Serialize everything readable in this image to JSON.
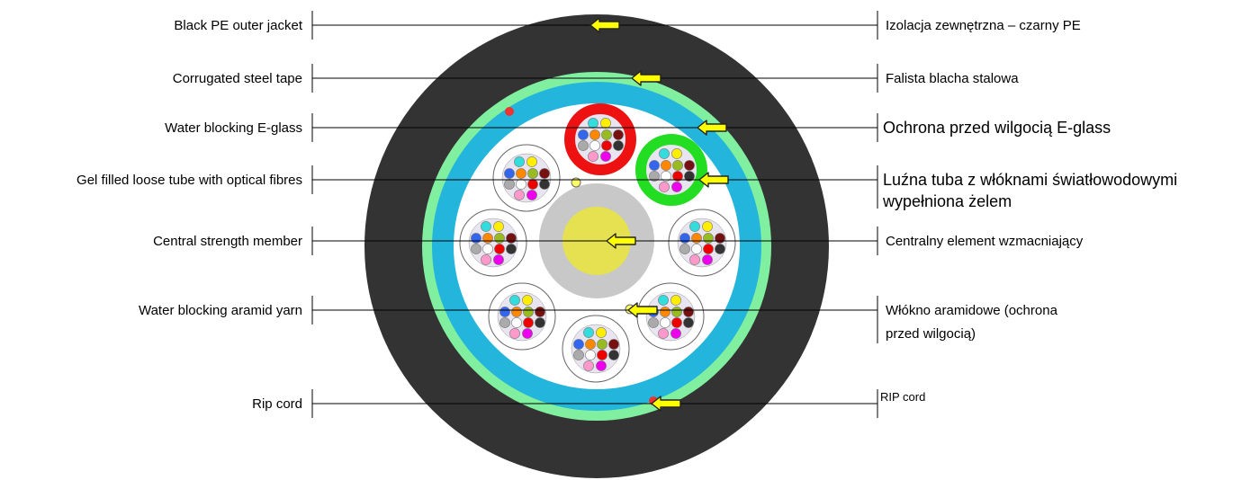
{
  "labels_left": [
    "Black PE outer jacket",
    "Corrugated steel tape",
    "Water blocking E-glass",
    "Gel filled loose tube with optical fibres",
    "Central strength member",
    "Water blocking aramid yarn",
    "Rip cord"
  ],
  "labels_right": [
    [
      "Izolacja zewnętrzna – czarny PE"
    ],
    [
      "Falista blacha stalowa"
    ],
    [
      "Ochrona przed wilgocią E-glass"
    ],
    [
      "Luźna tuba z włóknami światłowodowymi",
      "wypełniona żelem"
    ],
    [
      "Centralny element wzmacniający"
    ],
    [
      "Włókno aramidowe (ochrona",
      "przed wilgocią)"
    ],
    [
      "RIP cord"
    ]
  ],
  "colors": {
    "jacket": "#333333",
    "steel_tape": "#80f0a0",
    "eglass": "#23b5dc",
    "core": "#ffffff",
    "csm_outer": "#c8c8c8",
    "csm_inner": "#e6e150",
    "red_tube": "#ee1111",
    "green_tube": "#22dd22",
    "arrow": "#ffff00",
    "rip_cord": "#ee3333",
    "fiber_colors": [
      "#33dddd",
      "#ffee00",
      "#3366ee",
      "#ff8800",
      "#99bb22",
      "#771111",
      "#aaaaaa",
      "#ffffff",
      "#ee0000",
      "#333333",
      "#ff99cc",
      "#ee00ee"
    ]
  }
}
